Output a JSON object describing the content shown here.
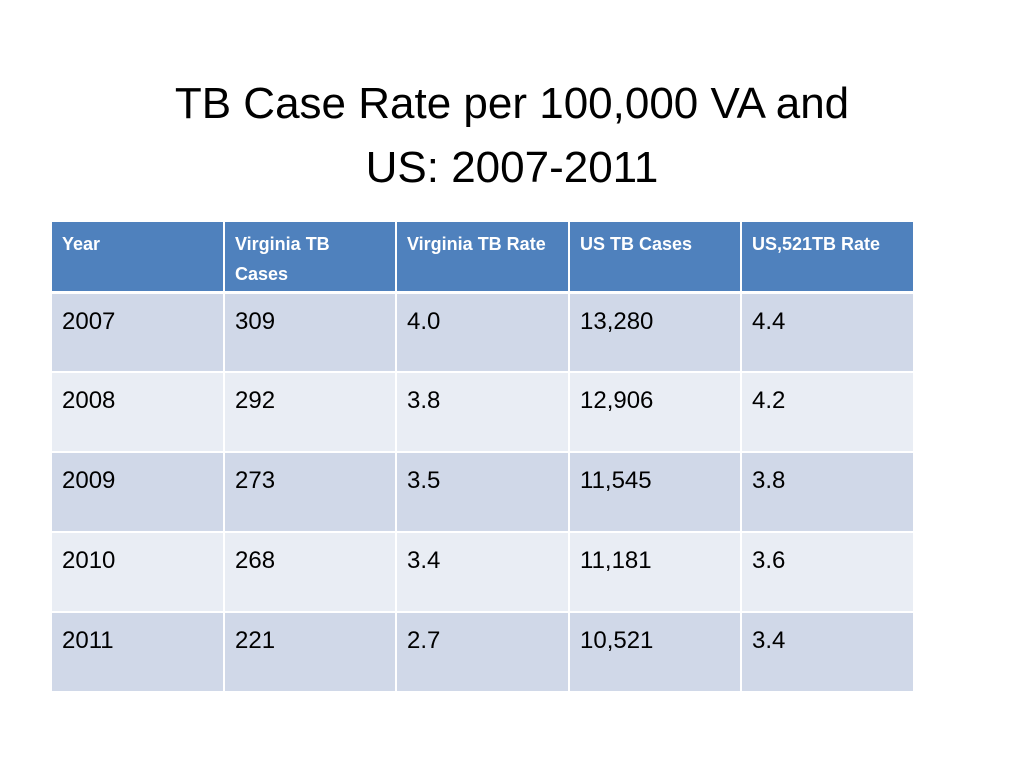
{
  "slide": {
    "title_line1": "TB Case Rate per 100,000 VA and",
    "title_line2": "US: 2007-2011"
  },
  "table": {
    "headers": [
      "Year",
      "Virginia TB Cases",
      "Virginia TB Rate",
      "US TB Cases",
      "US,521TB Rate"
    ],
    "rows": [
      [
        "2007",
        "309",
        "4.0",
        "13,280",
        "4.4"
      ],
      [
        "2008",
        "292",
        "3.8",
        "12,906",
        "4.2"
      ],
      [
        "2009",
        "273",
        "3.5",
        "11,545",
        "3.8"
      ],
      [
        "2010",
        "268",
        "3.4",
        "11,181",
        "3.6"
      ],
      [
        "2011",
        "221",
        "2.7",
        "10,521",
        "3.4"
      ]
    ]
  },
  "colors": {
    "header_bg": "#4f81bd",
    "row_band_dark": "#d0d8e8",
    "row_band_light": "#e9edf4"
  }
}
